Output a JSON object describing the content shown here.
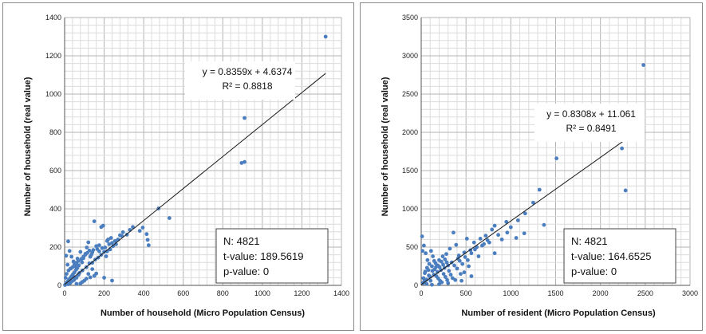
{
  "chart_data": [
    {
      "type": "scatter",
      "title": "",
      "xlabel": "Number of household (Micro Population Census)",
      "ylabel": "Number of household (real value)",
      "xlim": [
        0,
        1400
      ],
      "ylim": [
        0,
        1400
      ],
      "x_major_ticks": [
        0,
        200,
        400,
        600,
        800,
        1000,
        1200,
        1400
      ],
      "y_major_ticks": [
        0,
        200,
        400,
        600,
        800,
        1000,
        1200,
        1400
      ],
      "minor_grid_step": 40,
      "grid": true,
      "point_color": "#4a7ebf",
      "trendline": {
        "slope": 0.8359,
        "intercept": 4.6374,
        "x_range": [
          0,
          1320
        ]
      },
      "equation_text": "y = 0.8359x + 4.6374",
      "r2_text": "R² = 0.8818",
      "stats": [
        "N: 4821",
        "t-value: 189.5619",
        "p-value: 0"
      ],
      "points": [
        [
          1320,
          1300
        ],
        [
          1010,
          980
        ],
        [
          910,
          875
        ],
        [
          895,
          640
        ],
        [
          910,
          645
        ],
        [
          530,
          352
        ],
        [
          475,
          402
        ],
        [
          415,
          268
        ],
        [
          420,
          238
        ],
        [
          425,
          210
        ],
        [
          395,
          302
        ],
        [
          380,
          285
        ],
        [
          345,
          305
        ],
        [
          330,
          290
        ],
        [
          315,
          265
        ],
        [
          295,
          278
        ],
        [
          290,
          258
        ],
        [
          270,
          240
        ],
        [
          255,
          232
        ],
        [
          240,
          222
        ],
        [
          225,
          215
        ],
        [
          215,
          232
        ],
        [
          205,
          198
        ],
        [
          195,
          312
        ],
        [
          185,
          305
        ],
        [
          175,
          178
        ],
        [
          165,
          190
        ],
        [
          150,
          335
        ],
        [
          140,
          172
        ],
        [
          130,
          150
        ],
        [
          120,
          225
        ],
        [
          112,
          198
        ],
        [
          105,
          160
        ],
        [
          95,
          142
        ],
        [
          88,
          120
        ],
        [
          80,
          175
        ],
        [
          72,
          105
        ],
        [
          65,
          92
        ],
        [
          58,
          82
        ],
        [
          50,
          68
        ],
        [
          42,
          58
        ],
        [
          35,
          48
        ],
        [
          28,
          38
        ],
        [
          22,
          30
        ],
        [
          15,
          20
        ],
        [
          10,
          12
        ],
        [
          6,
          8
        ],
        [
          2,
          2
        ],
        [
          18,
          230
        ],
        [
          25,
          180
        ],
        [
          35,
          150
        ],
        [
          45,
          125
        ],
        [
          8,
          155
        ],
        [
          15,
          108
        ],
        [
          55,
          100
        ],
        [
          65,
          140
        ],
        [
          75,
          65
        ],
        [
          90,
          78
        ],
        [
          110,
          95
        ],
        [
          125,
          115
        ],
        [
          140,
          118
        ],
        [
          155,
          135
        ],
        [
          170,
          145
        ],
        [
          185,
          160
        ],
        [
          200,
          175
        ],
        [
          215,
          178
        ],
        [
          230,
          188
        ],
        [
          245,
          205
        ],
        [
          260,
          215
        ],
        [
          280,
          262
        ],
        [
          150,
          50
        ],
        [
          160,
          62
        ],
        [
          130,
          42
        ],
        [
          110,
          35
        ],
        [
          100,
          25
        ],
        [
          90,
          18
        ],
        [
          200,
          40
        ],
        [
          240,
          25
        ],
        [
          80,
          10
        ],
        [
          60,
          8
        ],
        [
          48,
          28
        ],
        [
          38,
          22
        ],
        [
          28,
          12
        ],
        [
          18,
          6
        ],
        [
          5,
          40
        ],
        [
          10,
          60
        ],
        [
          20,
          78
        ],
        [
          30,
          88
        ],
        [
          40,
          95
        ],
        [
          50,
          110
        ],
        [
          60,
          118
        ],
        [
          70,
          128
        ],
        [
          85,
          138
        ],
        [
          95,
          150
        ],
        [
          105,
          165
        ],
        [
          115,
          170
        ],
        [
          125,
          182
        ],
        [
          135,
          160
        ],
        [
          145,
          185
        ],
        [
          160,
          205
        ],
        [
          175,
          210
        ],
        [
          190,
          195
        ],
        [
          210,
          152
        ],
        [
          220,
          240
        ],
        [
          235,
          248
        ],
        [
          120,
          60
        ],
        [
          140,
          85
        ],
        [
          60,
          40
        ],
        [
          45,
          45
        ],
        [
          70,
          55
        ]
      ]
    },
    {
      "type": "scatter",
      "title": "",
      "xlabel": "Number of resident (Micro Population Census)",
      "ylabel": "Number of household (real value)",
      "xlim": [
        0,
        3000
      ],
      "ylim": [
        0,
        3500
      ],
      "x_major_ticks": [
        0,
        500,
        1000,
        1500,
        2000,
        2500,
        3000
      ],
      "y_major_ticks": [
        0,
        500,
        1000,
        1500,
        2000,
        2500,
        3000,
        3500
      ],
      "minor_grid_step_x": 100,
      "minor_grid_step_y": 100,
      "grid": true,
      "point_color": "#4a7ebf",
      "trendline": {
        "slope": 0.8308,
        "intercept": 11.061,
        "x_range": [
          0,
          2470
        ]
      },
      "equation_text": "y = 0.8308x + 11.061",
      "r2_text": "R² = 0.8491",
      "stats": [
        "N: 4821",
        "t-value: 164.6525",
        "p-value: 0"
      ],
      "points": [
        [
          2480,
          2880
        ],
        [
          1850,
          1970
        ],
        [
          2240,
          1790
        ],
        [
          2280,
          1240
        ],
        [
          1510,
          1660
        ],
        [
          1320,
          1250
        ],
        [
          1370,
          790
        ],
        [
          1160,
          940
        ],
        [
          1080,
          850
        ],
        [
          1060,
          620
        ],
        [
          1000,
          760
        ],
        [
          960,
          690
        ],
        [
          860,
          660
        ],
        [
          820,
          780
        ],
        [
          790,
          730
        ],
        [
          740,
          590
        ],
        [
          700,
          540
        ],
        [
          660,
          610
        ],
        [
          620,
          500
        ],
        [
          590,
          560
        ],
        [
          550,
          460
        ],
        [
          510,
          610
        ],
        [
          480,
          430
        ],
        [
          450,
          60
        ],
        [
          420,
          390
        ],
        [
          390,
          530
        ],
        [
          360,
          690
        ],
        [
          340,
          300
        ],
        [
          320,
          480
        ],
        [
          300,
          260
        ],
        [
          280,
          410
        ],
        [
          260,
          230
        ],
        [
          240,
          380
        ],
        [
          220,
          200
        ],
        [
          200,
          330
        ],
        [
          180,
          175
        ],
        [
          160,
          290
        ],
        [
          140,
          140
        ],
        [
          120,
          250
        ],
        [
          100,
          110
        ],
        [
          80,
          200
        ],
        [
          60,
          75
        ],
        [
          40,
          160
        ],
        [
          20,
          30
        ],
        [
          10,
          640
        ],
        [
          15,
          450
        ],
        [
          30,
          520
        ],
        [
          50,
          420
        ],
        [
          70,
          330
        ],
        [
          90,
          280
        ],
        [
          110,
          450
        ],
        [
          130,
          380
        ],
        [
          150,
          210
        ],
        [
          170,
          120
        ],
        [
          190,
          90
        ],
        [
          210,
          60
        ],
        [
          230,
          40
        ],
        [
          250,
          150
        ],
        [
          270,
          110
        ],
        [
          290,
          70
        ],
        [
          310,
          190
        ],
        [
          330,
          140
        ],
        [
          350,
          95
        ],
        [
          370,
          260
        ],
        [
          400,
          220
        ],
        [
          430,
          320
        ],
        [
          460,
          280
        ],
        [
          490,
          370
        ],
        [
          520,
          330
        ],
        [
          560,
          420
        ],
        [
          600,
          470
        ],
        [
          640,
          380
        ],
        [
          680,
          520
        ],
        [
          720,
          650
        ],
        [
          760,
          560
        ],
        [
          900,
          600
        ],
        [
          950,
          830
        ],
        [
          1150,
          680
        ],
        [
          1250,
          1080
        ],
        [
          820,
          420
        ],
        [
          560,
          120
        ],
        [
          480,
          170
        ],
        [
          380,
          70
        ],
        [
          300,
          30
        ],
        [
          200,
          15
        ],
        [
          120,
          8
        ],
        [
          60,
          20
        ],
        [
          35,
          55
        ],
        [
          25,
          95
        ],
        [
          45,
          180
        ],
        [
          65,
          230
        ],
        [
          85,
          130
        ],
        [
          105,
          60
        ],
        [
          125,
          190
        ],
        [
          145,
          320
        ],
        [
          165,
          240
        ],
        [
          185,
          260
        ],
        [
          205,
          240
        ],
        [
          225,
          310
        ],
        [
          245,
          270
        ],
        [
          265,
          340
        ],
        [
          285,
          300
        ],
        [
          410,
          350
        ],
        [
          440,
          150
        ],
        [
          530,
          250
        ]
      ]
    }
  ]
}
